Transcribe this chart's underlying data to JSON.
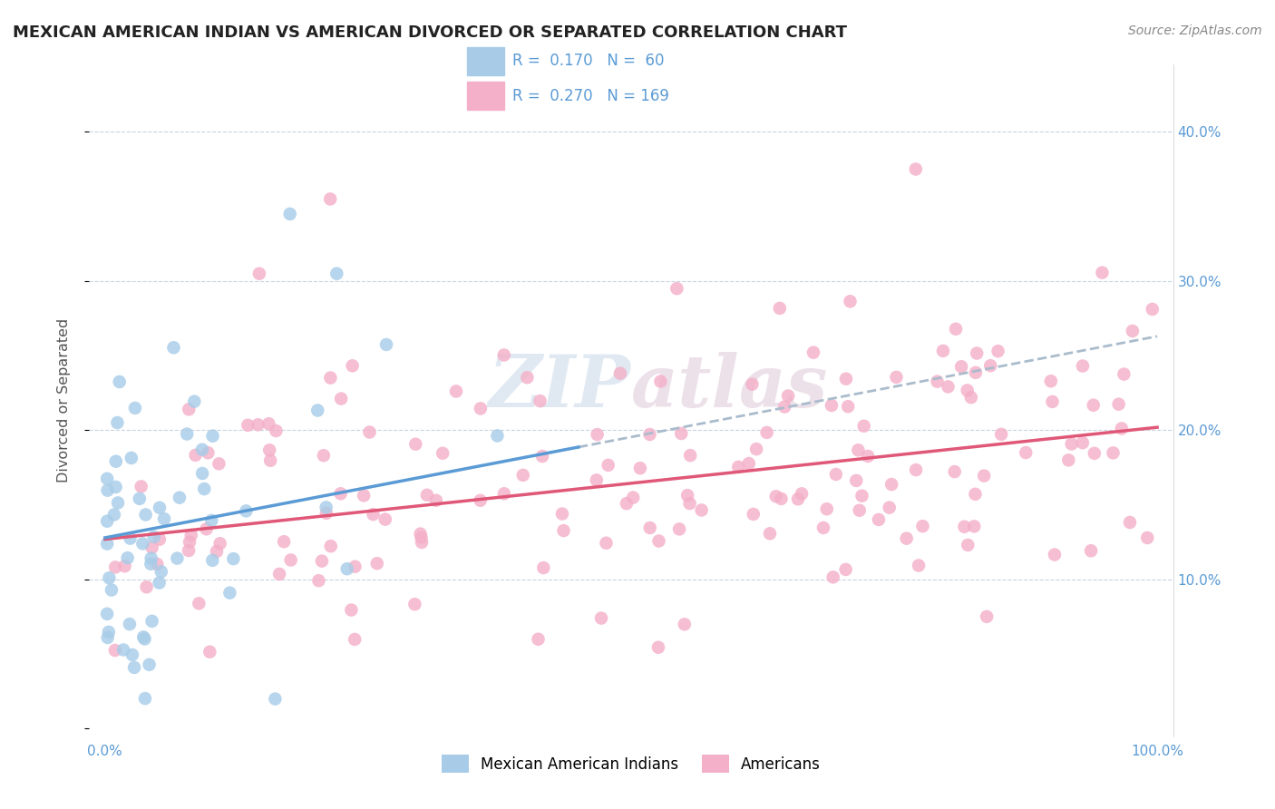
{
  "title": "MEXICAN AMERICAN INDIAN VS AMERICAN DIVORCED OR SEPARATED CORRELATION CHART",
  "source_text": "Source: ZipAtlas.com",
  "ylabel": "Divorced or Separated",
  "blue_color": "#a8cce8",
  "pink_color": "#f4b0c8",
  "blue_line_color": "#5b9bd5",
  "pink_line_color": "#e05878",
  "dashed_color": "#9ab8d0",
  "legend_blue_text": "R =  0.170   N =  60",
  "legend_pink_text": "R =  0.270   N = 169",
  "watermark": "ZIPatlas",
  "title_fontsize": 13,
  "tick_color": "#5b9bd5",
  "blue_seed": 12,
  "pink_seed": 99
}
